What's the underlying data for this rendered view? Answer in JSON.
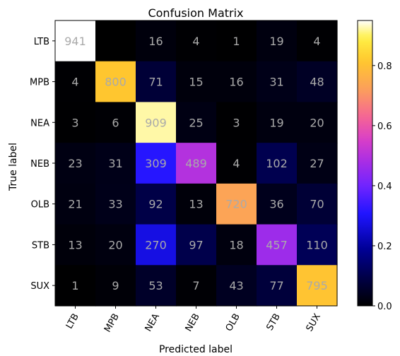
{
  "chart_data": {
    "type": "heatmap",
    "title": "Confusion Matrix",
    "xlabel": "Predicted label",
    "ylabel": "True label",
    "x_categories": [
      "LTB",
      "MPB",
      "NEA",
      "NEB",
      "OLB",
      "STB",
      "SUX"
    ],
    "y_categories": [
      "LTB",
      "MPB",
      "NEA",
      "NEB",
      "OLB",
      "STB",
      "SUX"
    ],
    "values": [
      [
        941,
        0,
        16,
        4,
        1,
        19,
        4
      ],
      [
        4,
        800,
        71,
        15,
        16,
        31,
        48
      ],
      [
        3,
        6,
        909,
        25,
        3,
        19,
        20
      ],
      [
        23,
        31,
        309,
        489,
        4,
        102,
        27
      ],
      [
        21,
        33,
        92,
        13,
        720,
        36,
        70
      ],
      [
        13,
        20,
        270,
        97,
        18,
        457,
        110
      ],
      [
        1,
        9,
        53,
        7,
        43,
        77,
        795
      ]
    ],
    "hidden_labels": [
      [
        0,
        1
      ]
    ],
    "colormap": "gnuplot2",
    "colorbar": {
      "range": [
        0.0,
        0.95
      ],
      "ticks": [
        0.0,
        0.2,
        0.4,
        0.6,
        0.8
      ],
      "tick_labels": [
        "0.0",
        "0.2",
        "0.4",
        "0.6",
        "0.8"
      ]
    },
    "cell_text_color": "#aaaaaa"
  }
}
